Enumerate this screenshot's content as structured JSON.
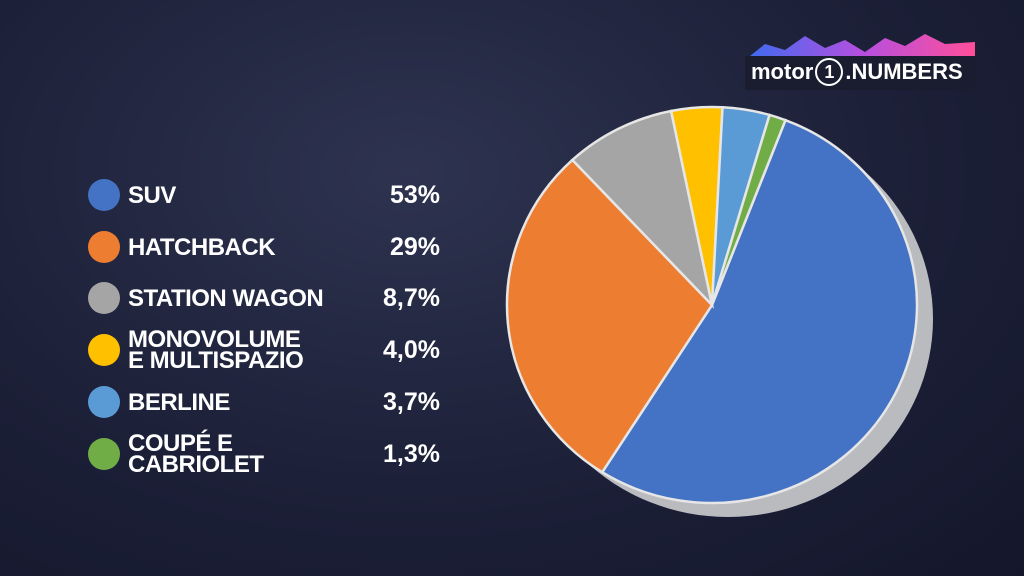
{
  "logo": {
    "brand": "motor",
    "number": "1",
    "suffix": ".NUMBERS"
  },
  "chart_data": {
    "type": "pie",
    "categories": [
      "SUV",
      "HATCHBACK",
      "STATION WAGON",
      "MONOVOLUME\nE MULTISPAZIO",
      "BERLINE",
      "COUPÉ E\nCABRIOLET"
    ],
    "values": [
      53,
      29,
      8.7,
      4.0,
      3.7,
      1.3
    ],
    "value_labels": [
      "53%",
      "29%",
      "8,7%",
      "4,0%",
      "3,7%",
      "1,3%"
    ],
    "colors": [
      "#4472c4",
      "#ed7d31",
      "#a5a5a5",
      "#ffc000",
      "#5b9bd5",
      "#70ad47"
    ]
  }
}
